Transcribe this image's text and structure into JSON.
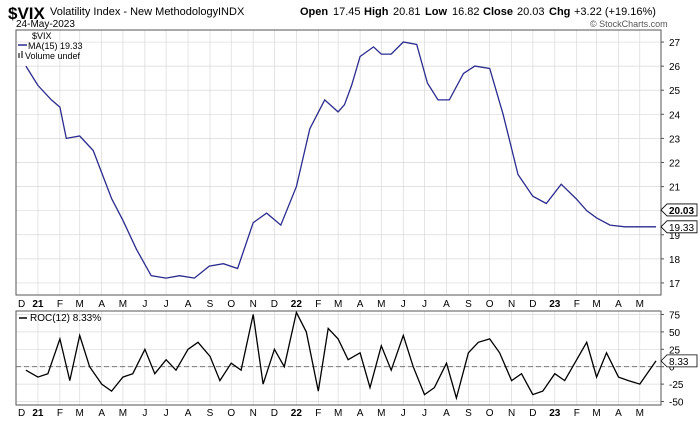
{
  "header": {
    "symbol": "$VIX",
    "name": "Volatility Index - New Methodology",
    "exchange": "INDX",
    "date": "24-May-2023",
    "open_label": "Open",
    "open": "17.45",
    "high_label": "High",
    "high": "20.81",
    "low_label": "Low",
    "low": "16.82",
    "close_label": "Close",
    "close": "20.03",
    "chg_label": "Chg",
    "chg": "+3.22 (+19.16%)",
    "watermark": "© StockCharts.com"
  },
  "legend": {
    "series": "$VIX",
    "ma": "MA(15) 19.33",
    "volume": "Volume undef",
    "roc": "ROC(12) 8.33%"
  },
  "colors": {
    "ma_line": "#2b2b8f",
    "roc_line": "#000000",
    "grid": "#d9d9d9",
    "frame": "#555555",
    "close_tag_bg": "#ffffff"
  },
  "chart_data": [
    {
      "type": "line",
      "title": "$VIX Volatility Index - New Methodology",
      "series": [
        {
          "name": "MA(15) 19.33",
          "x": [
            "2020-12-15",
            "2021-01-01",
            "2021-01-20",
            "2021-02-01",
            "2021-02-10",
            "2021-03-01",
            "2021-03-20",
            "2021-04-15",
            "2021-05-01",
            "2021-05-20",
            "2021-06-10",
            "2021-07-01",
            "2021-07-20",
            "2021-08-10",
            "2021-08-31",
            "2021-09-20",
            "2021-10-10",
            "2021-11-01",
            "2021-11-20",
            "2021-12-10",
            "2022-01-01",
            "2022-01-20",
            "2022-02-10",
            "2022-03-01",
            "2022-03-10",
            "2022-03-20",
            "2022-04-01",
            "2022-04-20",
            "2022-05-01",
            "2022-05-15",
            "2022-06-01",
            "2022-06-20",
            "2022-07-05",
            "2022-07-20",
            "2022-08-05",
            "2022-08-25",
            "2022-09-10",
            "2022-10-01",
            "2022-10-20",
            "2022-11-10",
            "2022-12-01",
            "2022-12-20",
            "2023-01-10",
            "2023-01-31",
            "2023-02-15",
            "2023-03-01",
            "2023-03-20",
            "2023-04-10",
            "2023-05-01",
            "2023-05-24"
          ],
          "values": [
            26.0,
            25.2,
            24.6,
            24.3,
            23.0,
            23.1,
            22.5,
            20.5,
            19.6,
            18.4,
            17.3,
            17.2,
            17.3,
            17.2,
            17.7,
            17.8,
            17.6,
            19.5,
            19.9,
            19.4,
            21.0,
            23.4,
            24.6,
            24.1,
            24.4,
            25.2,
            26.4,
            26.8,
            26.5,
            26.5,
            27.0,
            26.9,
            25.3,
            24.6,
            24.6,
            25.7,
            26.0,
            25.9,
            24.0,
            21.5,
            20.6,
            20.3,
            21.1,
            20.5,
            20.0,
            19.7,
            19.4,
            19.33,
            19.33,
            19.33
          ],
          "close_value": 20.03,
          "last_ma_value": 19.33
        }
      ],
      "ylim": [
        16.5,
        27.5
      ],
      "yticks": [
        17,
        18,
        19,
        20,
        21,
        22,
        23,
        24,
        25,
        26,
        27
      ],
      "xticks": [
        "D",
        "21",
        "F",
        "M",
        "A",
        "M",
        "J",
        "J",
        "A",
        "S",
        "O",
        "N",
        "D",
        "22",
        "F",
        "M",
        "A",
        "M",
        "J",
        "J",
        "A",
        "S",
        "O",
        "N",
        "D",
        "23",
        "F",
        "M",
        "A",
        "M"
      ],
      "grid": true,
      "legend_position": "top-left"
    },
    {
      "type": "line",
      "title": "ROC(12) 8.33%",
      "series": [
        {
          "name": "ROC(12) 8.33%",
          "x": [
            "2020-12-15",
            "2021-01-01",
            "2021-01-15",
            "2021-02-01",
            "2021-02-15",
            "2021-03-01",
            "2021-03-15",
            "2021-04-01",
            "2021-04-15",
            "2021-05-01",
            "2021-05-15",
            "2021-06-01",
            "2021-06-15",
            "2021-07-01",
            "2021-07-15",
            "2021-08-01",
            "2021-08-15",
            "2021-09-01",
            "2021-09-15",
            "2021-10-01",
            "2021-10-15",
            "2021-11-01",
            "2021-11-15",
            "2021-12-01",
            "2021-12-15",
            "2022-01-01",
            "2022-01-15",
            "2022-02-01",
            "2022-02-15",
            "2022-03-01",
            "2022-03-15",
            "2022-04-01",
            "2022-04-15",
            "2022-05-01",
            "2022-05-15",
            "2022-06-01",
            "2022-06-15",
            "2022-07-01",
            "2022-07-15",
            "2022-08-01",
            "2022-08-15",
            "2022-09-01",
            "2022-09-15",
            "2022-10-01",
            "2022-10-15",
            "2022-11-01",
            "2022-11-15",
            "2022-12-01",
            "2022-12-15",
            "2023-01-01",
            "2023-01-15",
            "2023-02-01",
            "2023-02-15",
            "2023-03-01",
            "2023-03-15",
            "2023-04-01",
            "2023-04-15",
            "2023-05-01",
            "2023-05-24"
          ],
          "values": [
            -5,
            -15,
            -10,
            40,
            -20,
            45,
            0,
            -25,
            -35,
            -15,
            -10,
            25,
            -10,
            10,
            -5,
            25,
            35,
            15,
            -20,
            5,
            -5,
            75,
            -25,
            25,
            0,
            78,
            50,
            -35,
            55,
            40,
            10,
            20,
            -30,
            30,
            -5,
            45,
            0,
            -40,
            -30,
            5,
            -45,
            20,
            35,
            40,
            20,
            -20,
            -10,
            -40,
            -35,
            -10,
            -20,
            10,
            35,
            -15,
            20,
            -15,
            -20,
            -25,
            8.33
          ]
        }
      ],
      "ylim": [
        -55,
        80
      ],
      "yticks": [
        -50,
        -25,
        0,
        25,
        50,
        75
      ],
      "reference_line": 0,
      "grid": true,
      "legend_position": "top-left"
    }
  ]
}
